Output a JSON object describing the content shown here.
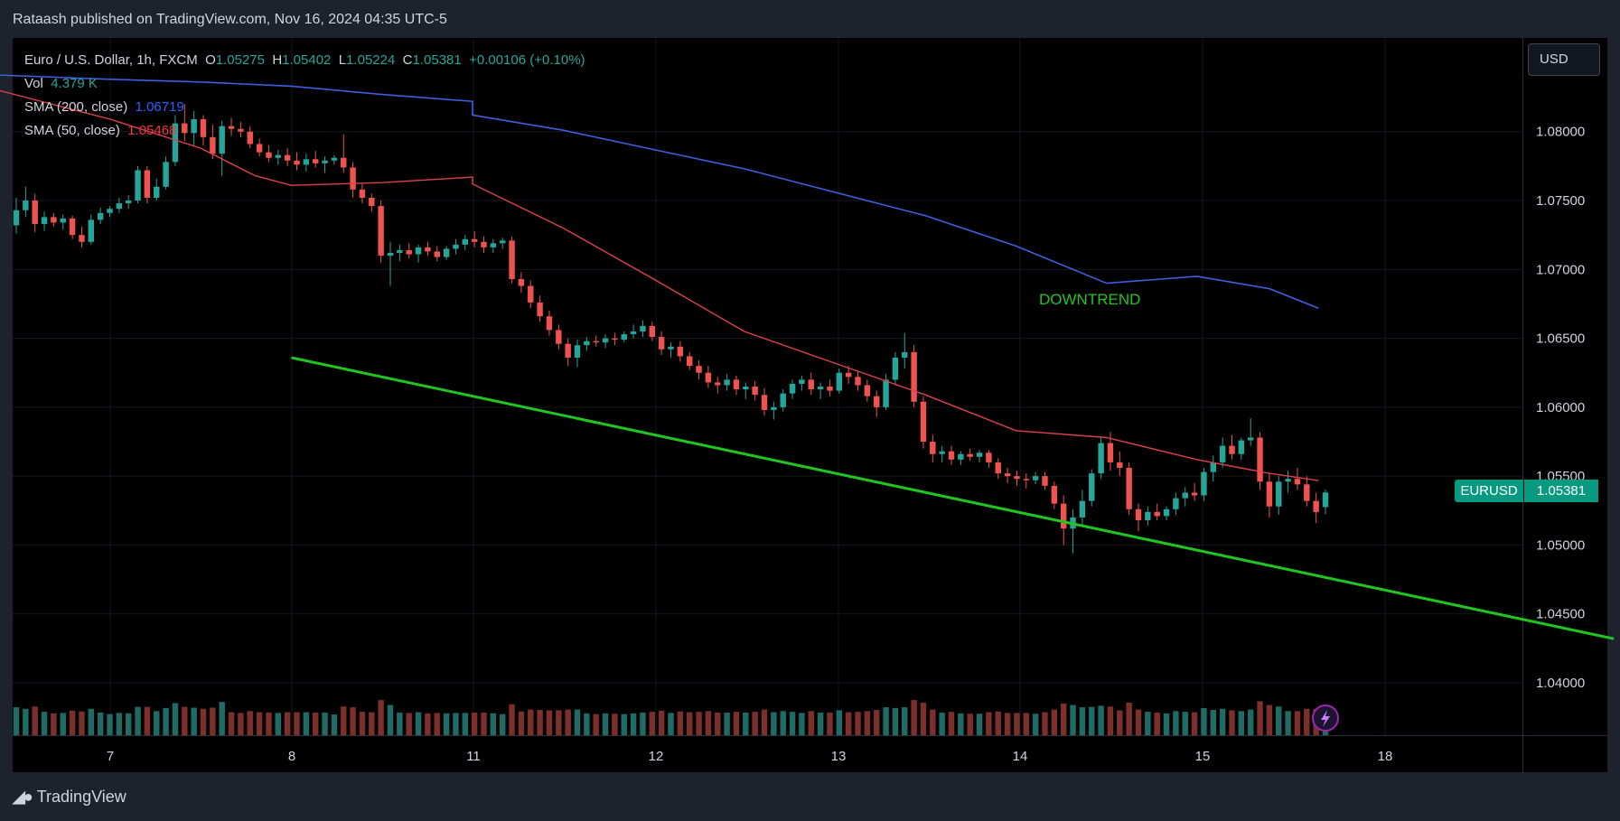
{
  "publish_line": "Rataash published on TradingView.com, Nov 16, 2024 04:35 UTC-5",
  "legend": {
    "symbol": "Euro / U.S. Dollar, 1h, FXCM",
    "o_label": "O",
    "o_value": "1.05275",
    "h_label": "H",
    "h_value": "1.05402",
    "l_label": "L",
    "l_value": "1.05224",
    "c_label": "C",
    "c_value": "1.05381",
    "change": "+0.00106 (+0.10%)",
    "vol_label": "Vol",
    "vol_value": "4.379 K",
    "sma200_label": "SMA (200, close)",
    "sma200_value": "1.06719",
    "sma50_label": "SMA (50, close)",
    "sma50_value": "1.05468"
  },
  "currency_button": "USD",
  "last_price": {
    "symbol": "EURUSD",
    "value": "1.05381"
  },
  "annotation": "DOWNTREND",
  "brand": "TradingView",
  "colors": {
    "up": "#26a69a",
    "down": "#ef5350",
    "sma200": "#3f5fe0",
    "sma50": "#e0404e",
    "trendline": "#22c422",
    "annotation": "#22c422",
    "vol_up": "#1f6b66",
    "vol_down": "#7d2f2c"
  },
  "chart_data": {
    "type": "candlestick",
    "symbol": "EURUSD",
    "timeframe": "1h",
    "y_axis_ticks": [
      "1.08000",
      "1.07500",
      "1.07000",
      "1.06500",
      "1.06000",
      "1.05500",
      "1.05000",
      "1.04500",
      "1.04000"
    ],
    "ylim": [
      1.0362,
      1.0868
    ],
    "x_axis_ticks": [
      "7",
      "8",
      "11",
      "12",
      "13",
      "14",
      "15",
      "18"
    ],
    "sma200": [
      [
        6.0,
        1.0843
      ],
      [
        7.0,
        1.0838
      ],
      [
        7.5,
        1.0836
      ],
      [
        8.0,
        1.0833
      ],
      [
        8.5,
        1.0827
      ],
      [
        9.0,
        1.0822
      ],
      [
        11.0,
        1.0812
      ],
      [
        11.5,
        1.0801
      ],
      [
        12.0,
        1.0787
      ],
      [
        12.5,
        1.0773
      ],
      [
        13.0,
        1.0756
      ],
      [
        13.5,
        1.0739
      ],
      [
        14.0,
        1.0717
      ],
      [
        14.5,
        1.069
      ],
      [
        15.0,
        1.0695
      ],
      [
        15.4,
        1.0686
      ],
      [
        15.67,
        1.06719
      ]
    ],
    "sma50": [
      [
        6.0,
        1.0843
      ],
      [
        7.0,
        1.0809
      ],
      [
        7.5,
        1.0788
      ],
      [
        7.8,
        1.0768
      ],
      [
        8.0,
        1.0761
      ],
      [
        8.5,
        1.0763
      ],
      [
        9.0,
        1.0767
      ],
      [
        11.0,
        1.0762
      ],
      [
        11.5,
        1.073
      ],
      [
        12.0,
        1.0693
      ],
      [
        12.5,
        1.0655
      ],
      [
        13.0,
        1.0632
      ],
      [
        13.5,
        1.0609
      ],
      [
        14.0,
        1.0583
      ],
      [
        14.5,
        1.0578
      ],
      [
        15.0,
        1.0562
      ],
      [
        15.4,
        1.0552
      ],
      [
        15.67,
        1.05468
      ]
    ],
    "trendline": [
      [
        8.0,
        1.0636
      ],
      [
        17.3,
        1.0432
      ]
    ],
    "candles_ohlc": [
      [
        1.0732,
        1.0752,
        1.0726,
        1.0743
      ],
      [
        1.0743,
        1.076,
        1.0738,
        1.075
      ],
      [
        1.075,
        1.0755,
        1.0727,
        1.0733
      ],
      [
        1.0733,
        1.0742,
        1.0728,
        1.0738
      ],
      [
        1.0738,
        1.0741,
        1.0731,
        1.0734
      ],
      [
        1.0734,
        1.074,
        1.0729,
        1.0737
      ],
      [
        1.0737,
        1.0739,
        1.0722,
        1.0725
      ],
      [
        1.0725,
        1.0731,
        1.0716,
        1.072
      ],
      [
        1.072,
        1.074,
        1.0718,
        1.0736
      ],
      [
        1.0736,
        1.0745,
        1.0733,
        1.0741
      ],
      [
        1.0741,
        1.0746,
        1.0738,
        1.0744
      ],
      [
        1.0744,
        1.0752,
        1.0741,
        1.0748
      ],
      [
        1.0748,
        1.0754,
        1.0744,
        1.075
      ],
      [
        1.075,
        1.0775,
        1.0748,
        1.0772
      ],
      [
        1.0772,
        1.0775,
        1.0748,
        1.0752
      ],
      [
        1.0752,
        1.0766,
        1.075,
        1.076
      ],
      [
        1.076,
        1.0782,
        1.0758,
        1.0778
      ],
      [
        1.0778,
        1.0812,
        1.0775,
        1.0806
      ],
      [
        1.0806,
        1.082,
        1.0793,
        1.0799
      ],
      [
        1.0799,
        1.0815,
        1.079,
        1.0809
      ],
      [
        1.0809,
        1.0812,
        1.079,
        1.0796
      ],
      [
        1.0796,
        1.0805,
        1.078,
        1.0784
      ],
      [
        1.0784,
        1.0808,
        1.0768,
        1.0804
      ],
      [
        1.0804,
        1.081,
        1.0797,
        1.0802
      ],
      [
        1.0802,
        1.0807,
        1.0796,
        1.08
      ],
      [
        1.08,
        1.0804,
        1.0788,
        1.0791
      ],
      [
        1.0791,
        1.0795,
        1.0782,
        1.0785
      ],
      [
        1.0785,
        1.079,
        1.0778,
        1.0781
      ],
      [
        1.0781,
        1.0787,
        1.0776,
        1.0783
      ],
      [
        1.0783,
        1.0788,
        1.0775,
        1.0779
      ],
      [
        1.0779,
        1.0785,
        1.0772,
        1.0776
      ],
      [
        1.0776,
        1.0784,
        1.0771,
        1.078
      ],
      [
        1.078,
        1.0786,
        1.0774,
        1.0777
      ],
      [
        1.0777,
        1.0782,
        1.077,
        1.0779
      ],
      [
        1.0779,
        1.0783,
        1.0776,
        1.0781
      ],
      [
        1.0781,
        1.0798,
        1.077,
        1.0774
      ],
      [
        1.0774,
        1.0778,
        1.0752,
        1.0758
      ],
      [
        1.0758,
        1.0762,
        1.0748,
        1.0752
      ],
      [
        1.0752,
        1.0755,
        1.0742,
        1.0746
      ],
      [
        1.0746,
        1.075,
        1.0705,
        1.071
      ],
      [
        1.071,
        1.072,
        1.0688,
        1.0712
      ],
      [
        1.0712,
        1.0718,
        1.0706,
        1.0714
      ],
      [
        1.0714,
        1.0719,
        1.0708,
        1.0711
      ],
      [
        1.0711,
        1.0718,
        1.0705,
        1.0716
      ],
      [
        1.0716,
        1.072,
        1.071,
        1.0713
      ],
      [
        1.0713,
        1.0717,
        1.0706,
        1.0709
      ],
      [
        1.0709,
        1.0717,
        1.0707,
        1.0715
      ],
      [
        1.0715,
        1.0722,
        1.0711,
        1.0718
      ],
      [
        1.0718,
        1.0725,
        1.0714,
        1.0722
      ],
      [
        1.0722,
        1.0728,
        1.0716,
        1.072
      ],
      [
        1.072,
        1.0724,
        1.0712,
        1.0716
      ],
      [
        1.0716,
        1.0722,
        1.0712,
        1.0719
      ],
      [
        1.0719,
        1.0723,
        1.0715,
        1.0721
      ],
      [
        1.0721,
        1.0724,
        1.069,
        1.0693
      ],
      [
        1.0693,
        1.0698,
        1.0683,
        1.0688
      ],
      [
        1.0688,
        1.0692,
        1.0672,
        1.0676
      ],
      [
        1.0676,
        1.0681,
        1.0662,
        1.0666
      ],
      [
        1.0666,
        1.067,
        1.0652,
        1.0656
      ],
      [
        1.0656,
        1.066,
        1.0642,
        1.0646
      ],
      [
        1.0646,
        1.065,
        1.063,
        1.0636
      ],
      [
        1.0636,
        1.0649,
        1.0629,
        1.0645
      ],
      [
        1.0645,
        1.0651,
        1.0641,
        1.0648
      ],
      [
        1.0648,
        1.0652,
        1.0644,
        1.0647
      ],
      [
        1.0647,
        1.0653,
        1.0643,
        1.065
      ],
      [
        1.065,
        1.0654,
        1.0645,
        1.0649
      ],
      [
        1.0649,
        1.0655,
        1.0647,
        1.0653
      ],
      [
        1.0653,
        1.066,
        1.065,
        1.0655
      ],
      [
        1.0655,
        1.0663,
        1.0651,
        1.0659
      ],
      [
        1.0659,
        1.0662,
        1.0648,
        1.0651
      ],
      [
        1.0651,
        1.0655,
        1.0638,
        1.0642
      ],
      [
        1.0642,
        1.0647,
        1.0636,
        1.0644
      ],
      [
        1.0644,
        1.0648,
        1.0633,
        1.0637
      ],
      [
        1.0637,
        1.064,
        1.0627,
        1.063
      ],
      [
        1.063,
        1.0634,
        1.062,
        1.0625
      ],
      [
        1.0625,
        1.063,
        1.0614,
        1.0618
      ],
      [
        1.0618,
        1.0622,
        1.061,
        1.0616
      ],
      [
        1.0616,
        1.0624,
        1.0612,
        1.062
      ],
      [
        1.062,
        1.0623,
        1.0609,
        1.0613
      ],
      [
        1.0613,
        1.0618,
        1.0606,
        1.0615
      ],
      [
        1.0615,
        1.0619,
        1.0605,
        1.0609
      ],
      [
        1.0609,
        1.0614,
        1.0594,
        1.0598
      ],
      [
        1.0598,
        1.0604,
        1.0591,
        1.06
      ],
      [
        1.06,
        1.0613,
        1.0597,
        1.061
      ],
      [
        1.061,
        1.062,
        1.0606,
        1.0617
      ],
      [
        1.0617,
        1.0623,
        1.0612,
        1.062
      ],
      [
        1.062,
        1.0625,
        1.0609,
        1.0613
      ],
      [
        1.0613,
        1.0618,
        1.0606,
        1.0615
      ],
      [
        1.0615,
        1.062,
        1.0608,
        1.0612
      ],
      [
        1.0612,
        1.0628,
        1.061,
        1.0625
      ],
      [
        1.0625,
        1.063,
        1.0617,
        1.0622
      ],
      [
        1.0622,
        1.0626,
        1.0612,
        1.0616
      ],
      [
        1.0616,
        1.062,
        1.0604,
        1.0608
      ],
      [
        1.0608,
        1.0612,
        1.0593,
        1.06
      ],
      [
        1.06,
        1.0624,
        1.0598,
        1.062
      ],
      [
        1.062,
        1.064,
        1.0616,
        1.0636
      ],
      [
        1.0636,
        1.0654,
        1.0628,
        1.064
      ],
      [
        1.064,
        1.0645,
        1.06,
        1.0604
      ],
      [
        1.0604,
        1.0608,
        1.057,
        1.0575
      ],
      [
        1.0575,
        1.058,
        1.056,
        1.0566
      ],
      [
        1.0566,
        1.0572,
        1.056,
        1.0568
      ],
      [
        1.0568,
        1.0572,
        1.0558,
        1.0562
      ],
      [
        1.0562,
        1.0568,
        1.0558,
        1.0566
      ],
      [
        1.0566,
        1.057,
        1.0561,
        1.0564
      ],
      [
        1.0564,
        1.0569,
        1.056,
        1.0567
      ],
      [
        1.0567,
        1.0569,
        1.0556,
        1.056
      ],
      [
        1.056,
        1.0563,
        1.0548,
        1.0552
      ],
      [
        1.0552,
        1.0556,
        1.0545,
        1.055
      ],
      [
        1.055,
        1.0554,
        1.0543,
        1.0548
      ],
      [
        1.0548,
        1.0552,
        1.0541,
        1.0547
      ],
      [
        1.0547,
        1.0553,
        1.0544,
        1.055
      ],
      [
        1.055,
        1.0553,
        1.054,
        1.0543
      ],
      [
        1.0543,
        1.0546,
        1.0526,
        1.053
      ],
      [
        1.053,
        1.0536,
        1.05,
        1.0512
      ],
      [
        1.0512,
        1.0526,
        1.0494,
        1.052
      ],
      [
        1.052,
        1.054,
        1.0514,
        1.0532
      ],
      [
        1.0532,
        1.0555,
        1.0528,
        1.0552
      ],
      [
        1.0552,
        1.0578,
        1.0548,
        1.0574
      ],
      [
        1.0574,
        1.0582,
        1.0554,
        1.056
      ],
      [
        1.056,
        1.0568,
        1.055,
        1.0556
      ],
      [
        1.0556,
        1.056,
        1.0522,
        1.0526
      ],
      [
        1.0526,
        1.053,
        1.051,
        1.0518
      ],
      [
        1.0518,
        1.0528,
        1.0514,
        1.0524
      ],
      [
        1.0524,
        1.053,
        1.0518,
        1.0521
      ],
      [
        1.0521,
        1.0528,
        1.0518,
        1.0526
      ],
      [
        1.0526,
        1.0538,
        1.0522,
        1.0534
      ],
      [
        1.0534,
        1.0542,
        1.0528,
        1.0538
      ],
      [
        1.0538,
        1.0545,
        1.0532,
        1.0536
      ],
      [
        1.0536,
        1.0556,
        1.0532,
        1.0553
      ],
      [
        1.0553,
        1.0565,
        1.0546,
        1.056
      ],
      [
        1.056,
        1.0578,
        1.0556,
        1.0572
      ],
      [
        1.0572,
        1.058,
        1.0562,
        1.0566
      ],
      [
        1.0566,
        1.0578,
        1.0562,
        1.0576
      ],
      [
        1.0576,
        1.0592,
        1.0572,
        1.0578
      ],
      [
        1.0578,
        1.0582,
        1.054,
        1.0546
      ],
      [
        1.0546,
        1.0552,
        1.052,
        1.0528
      ],
      [
        1.0528,
        1.055,
        1.0522,
        1.0546
      ],
      [
        1.0546,
        1.0554,
        1.0538,
        1.0548
      ],
      [
        1.0548,
        1.0556,
        1.054,
        1.0544
      ],
      [
        1.0544,
        1.055,
        1.0528,
        1.0532
      ],
      [
        1.0532,
        1.0538,
        1.0516,
        1.0524
      ],
      [
        1.05275,
        1.05402,
        1.05224,
        1.05381
      ]
    ]
  }
}
